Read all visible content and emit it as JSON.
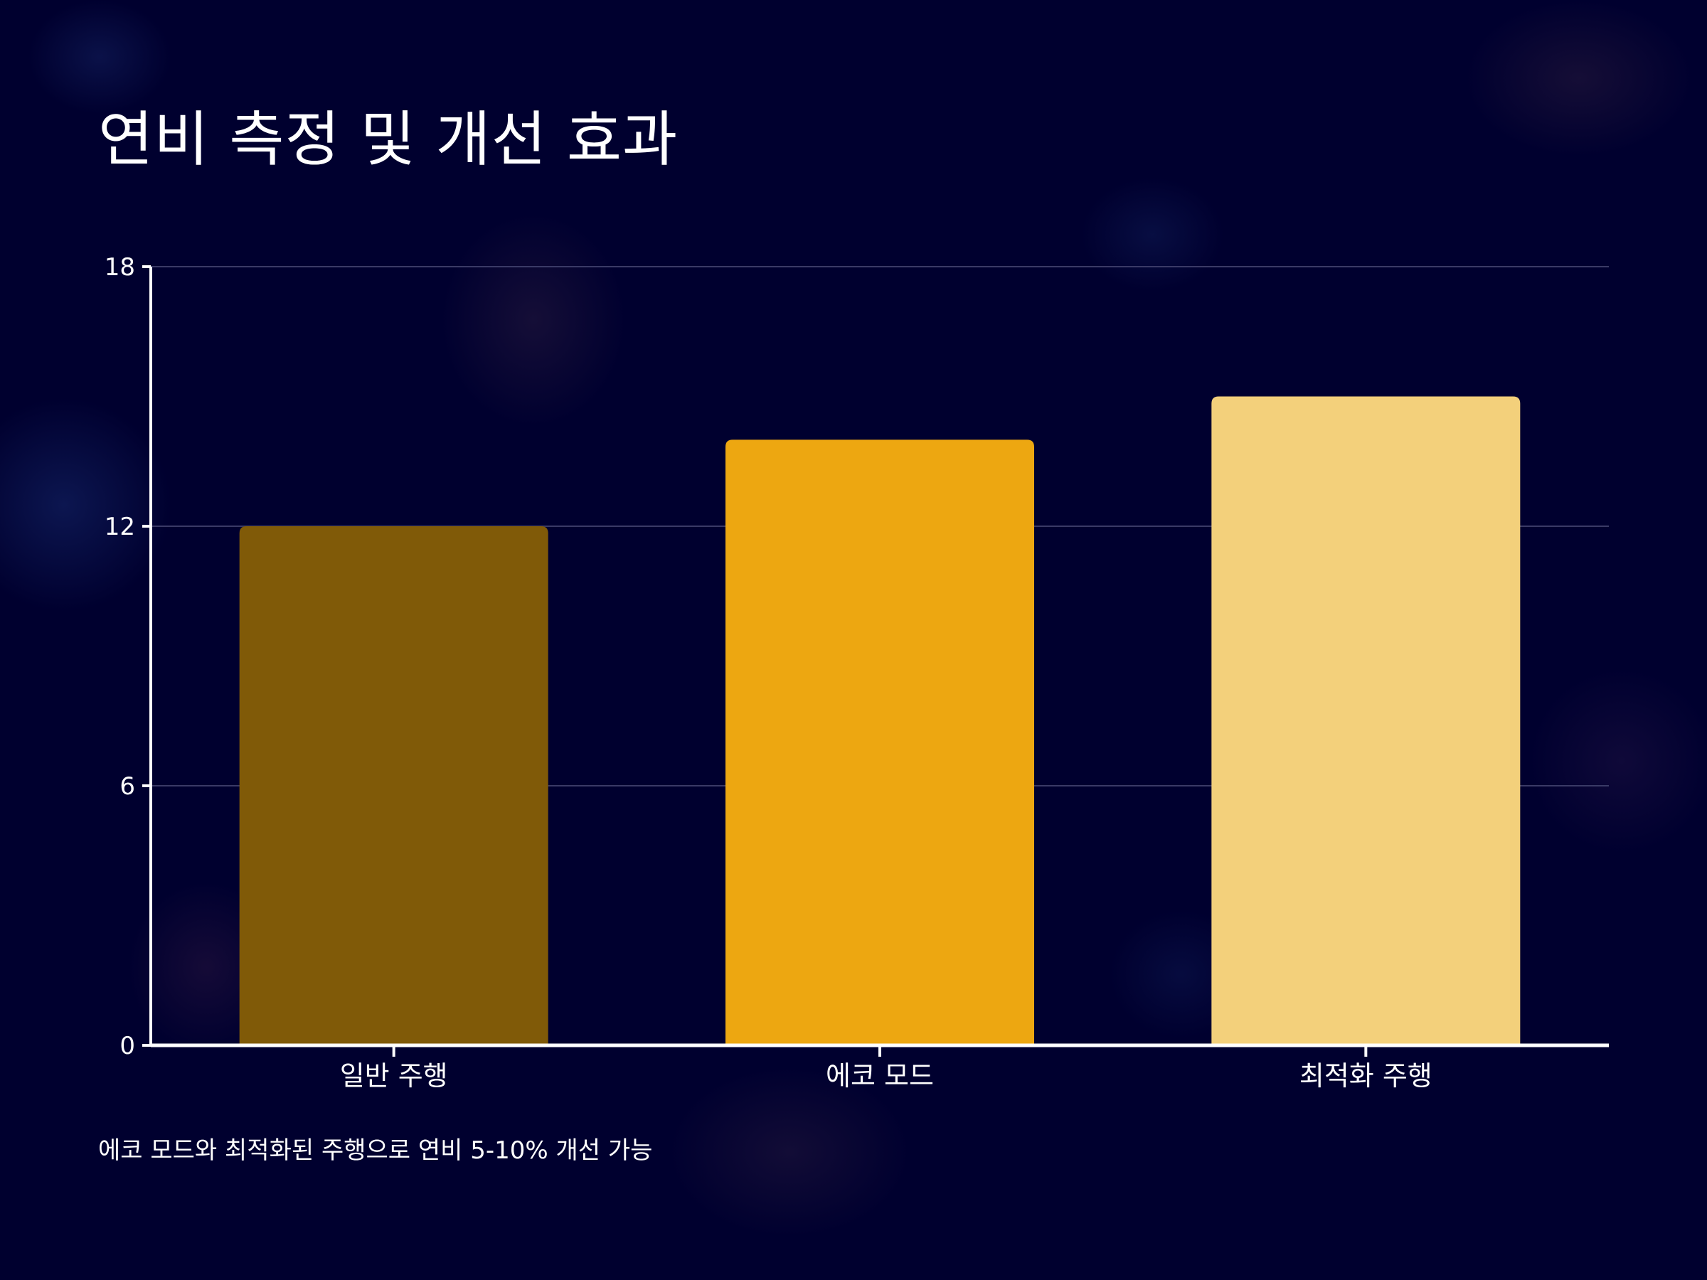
{
  "slide": {
    "title": "연비 측정 및 개선 효과",
    "caption": "에코 모드와 최적화된 주행으로 연비 5-10% 개선 가능"
  },
  "colors": {
    "background": "#00002f",
    "gridline": "#3a3a66",
    "axis": "#ffffff"
  },
  "chart_data": {
    "type": "bar",
    "categories": [
      "일반 주행",
      "에코 모드",
      "최적화 주행"
    ],
    "values": [
      12,
      14,
      15
    ],
    "bar_colors": [
      "#805a08",
      "#eda711",
      "#f3d07b"
    ],
    "title": "",
    "xlabel": "",
    "ylabel": "",
    "ylim": [
      0,
      18
    ],
    "yticks": [
      0,
      6,
      12,
      18
    ],
    "grid": true,
    "legend": "none"
  }
}
